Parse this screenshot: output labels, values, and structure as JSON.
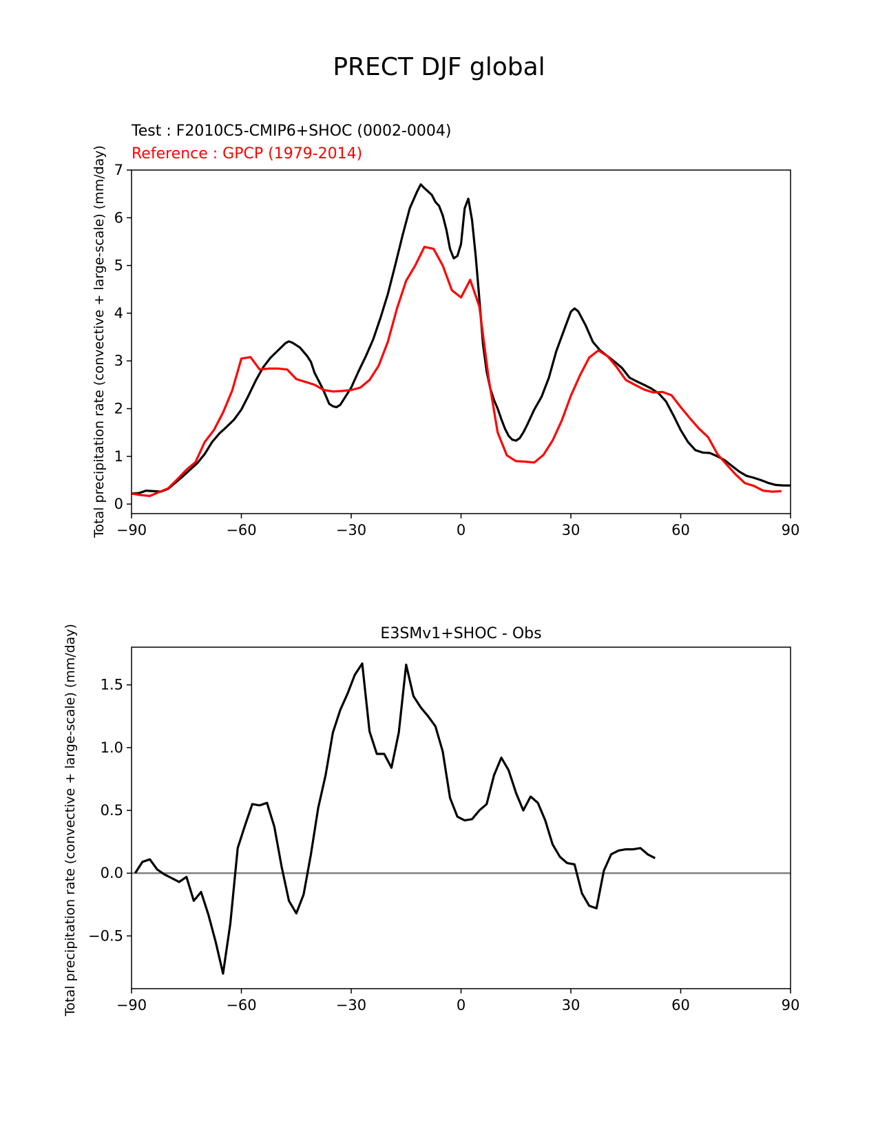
{
  "figure": {
    "title": "PRECT DJF global"
  },
  "chart_data": [
    {
      "type": "line",
      "test_label": "Test : F2010C5-CMIP6+SHOC (0002-0004)",
      "reference_label": "Reference : GPCP (1979-2014)",
      "title": "",
      "xlabel": "",
      "ylabel": "Total precipitation rate (convective + large-scale) (mm/day)",
      "xlim": [
        -90,
        90
      ],
      "ylim": [
        -0.2,
        7.0
      ],
      "xticks": [
        -90,
        -60,
        -30,
        0,
        30,
        60,
        90
      ],
      "xtick_labels": [
        "−90",
        "−60",
        "−30",
        "0",
        "30",
        "60",
        "90"
      ],
      "yticks": [
        0,
        1,
        2,
        3,
        4,
        5,
        6,
        7
      ],
      "ytick_labels": [
        "0",
        "1",
        "2",
        "3",
        "4",
        "5",
        "6",
        "7"
      ],
      "series": [
        {
          "color": "#000000",
          "points": [
            [
              -90,
              0.22
            ],
            [
              -88,
              0.23
            ],
            [
              -86,
              0.28
            ],
            [
              -84,
              0.27
            ],
            [
              -82,
              0.26
            ],
            [
              -80,
              0.32
            ],
            [
              -78,
              0.45
            ],
            [
              -76,
              0.58
            ],
            [
              -74,
              0.72
            ],
            [
              -72,
              0.86
            ],
            [
              -70,
              1.05
            ],
            [
              -68,
              1.3
            ],
            [
              -66,
              1.48
            ],
            [
              -64,
              1.62
            ],
            [
              -62,
              1.77
            ],
            [
              -60,
              1.98
            ],
            [
              -58,
              2.28
            ],
            [
              -56,
              2.6
            ],
            [
              -54,
              2.87
            ],
            [
              -52,
              3.07
            ],
            [
              -50,
              3.22
            ],
            [
              -48,
              3.37
            ],
            [
              -47,
              3.41
            ],
            [
              -46,
              3.38
            ],
            [
              -44,
              3.28
            ],
            [
              -42,
              3.1
            ],
            [
              -41,
              2.98
            ],
            [
              -40,
              2.75
            ],
            [
              -38,
              2.45
            ],
            [
              -37,
              2.28
            ],
            [
              -36,
              2.1
            ],
            [
              -35,
              2.05
            ],
            [
              -34,
              2.03
            ],
            [
              -33,
              2.08
            ],
            [
              -32,
              2.2
            ],
            [
              -30,
              2.44
            ],
            [
              -28,
              2.78
            ],
            [
              -26,
              3.1
            ],
            [
              -24,
              3.45
            ],
            [
              -22,
              3.9
            ],
            [
              -20,
              4.4
            ],
            [
              -18,
              5.0
            ],
            [
              -16,
              5.62
            ],
            [
              -14,
              6.2
            ],
            [
              -12,
              6.55
            ],
            [
              -11,
              6.7
            ],
            [
              -10,
              6.62
            ],
            [
              -9,
              6.55
            ],
            [
              -8,
              6.48
            ],
            [
              -7,
              6.33
            ],
            [
              -6,
              6.25
            ],
            [
              -5,
              6.05
            ],
            [
              -4,
              5.75
            ],
            [
              -3,
              5.35
            ],
            [
              -2,
              5.15
            ],
            [
              -1,
              5.2
            ],
            [
              0,
              5.45
            ],
            [
              1,
              6.2
            ],
            [
              2,
              6.4
            ],
            [
              3,
              5.95
            ],
            [
              4,
              5.2
            ],
            [
              5,
              4.3
            ],
            [
              6,
              3.35
            ],
            [
              7,
              2.78
            ],
            [
              8,
              2.42
            ],
            [
              9,
              2.18
            ],
            [
              10,
              2.0
            ],
            [
              11,
              1.78
            ],
            [
              12,
              1.58
            ],
            [
              13,
              1.43
            ],
            [
              14,
              1.35
            ],
            [
              15,
              1.33
            ],
            [
              16,
              1.38
            ],
            [
              17,
              1.5
            ],
            [
              18,
              1.65
            ],
            [
              20,
              1.98
            ],
            [
              22,
              2.25
            ],
            [
              24,
              2.65
            ],
            [
              26,
              3.2
            ],
            [
              28,
              3.62
            ],
            [
              30,
              4.03
            ],
            [
              31,
              4.1
            ],
            [
              32,
              4.04
            ],
            [
              34,
              3.75
            ],
            [
              36,
              3.4
            ],
            [
              38,
              3.22
            ],
            [
              40,
              3.1
            ],
            [
              42,
              2.98
            ],
            [
              44,
              2.85
            ],
            [
              46,
              2.65
            ],
            [
              48,
              2.57
            ],
            [
              50,
              2.5
            ],
            [
              52,
              2.42
            ],
            [
              54,
              2.32
            ],
            [
              56,
              2.15
            ],
            [
              58,
              1.86
            ],
            [
              60,
              1.55
            ],
            [
              62,
              1.3
            ],
            [
              64,
              1.13
            ],
            [
              66,
              1.08
            ],
            [
              68,
              1.07
            ],
            [
              70,
              1.0
            ],
            [
              72,
              0.92
            ],
            [
              74,
              0.8
            ],
            [
              76,
              0.68
            ],
            [
              78,
              0.59
            ],
            [
              80,
              0.55
            ],
            [
              82,
              0.5
            ],
            [
              84,
              0.44
            ],
            [
              86,
              0.4
            ],
            [
              88,
              0.39
            ],
            [
              90,
              0.39
            ]
          ]
        },
        {
          "color": "#ff0000",
          "points": [
            [
              -90,
              0.22
            ],
            [
              -87.5,
              0.19
            ],
            [
              -85,
              0.17
            ],
            [
              -82.5,
              0.25
            ],
            [
              -80,
              0.33
            ],
            [
              -77.5,
              0.52
            ],
            [
              -75,
              0.72
            ],
            [
              -72.5,
              0.88
            ],
            [
              -70,
              1.3
            ],
            [
              -67.5,
              1.55
            ],
            [
              -65,
              1.92
            ],
            [
              -62.5,
              2.38
            ],
            [
              -60,
              3.05
            ],
            [
              -57.5,
              3.08
            ],
            [
              -55,
              2.82
            ],
            [
              -52.5,
              2.84
            ],
            [
              -50,
              2.84
            ],
            [
              -47.5,
              2.82
            ],
            [
              -45,
              2.62
            ],
            [
              -42.5,
              2.56
            ],
            [
              -40,
              2.5
            ],
            [
              -37.5,
              2.39
            ],
            [
              -35,
              2.36
            ],
            [
              -32.5,
              2.37
            ],
            [
              -30,
              2.39
            ],
            [
              -27.5,
              2.44
            ],
            [
              -25,
              2.6
            ],
            [
              -22.5,
              2.9
            ],
            [
              -20,
              3.4
            ],
            [
              -17.5,
              4.1
            ],
            [
              -15,
              4.68
            ],
            [
              -12.5,
              5.0
            ],
            [
              -10,
              5.39
            ],
            [
              -7.5,
              5.35
            ],
            [
              -5,
              5.0
            ],
            [
              -2.5,
              4.48
            ],
            [
              0,
              4.33
            ],
            [
              2.5,
              4.7
            ],
            [
              5,
              4.14
            ],
            [
              7.5,
              2.65
            ],
            [
              10,
              1.5
            ],
            [
              12.5,
              1.02
            ],
            [
              15,
              0.9
            ],
            [
              17.5,
              0.89
            ],
            [
              20,
              0.87
            ],
            [
              22.5,
              1.03
            ],
            [
              25,
              1.33
            ],
            [
              27.5,
              1.75
            ],
            [
              30,
              2.27
            ],
            [
              32.5,
              2.7
            ],
            [
              35,
              3.07
            ],
            [
              37.5,
              3.22
            ],
            [
              40,
              3.1
            ],
            [
              42.5,
              2.87
            ],
            [
              45,
              2.6
            ],
            [
              47.5,
              2.5
            ],
            [
              50,
              2.4
            ],
            [
              52.5,
              2.34
            ],
            [
              55,
              2.35
            ],
            [
              57.5,
              2.28
            ],
            [
              60,
              2.03
            ],
            [
              62.5,
              1.8
            ],
            [
              65,
              1.58
            ],
            [
              67.5,
              1.4
            ],
            [
              70,
              1.05
            ],
            [
              72.5,
              0.83
            ],
            [
              75,
              0.62
            ],
            [
              77.5,
              0.44
            ],
            [
              80,
              0.38
            ],
            [
              82.5,
              0.28
            ],
            [
              85,
              0.26
            ],
            [
              87.5,
              0.27
            ]
          ]
        }
      ]
    },
    {
      "type": "line",
      "title": "E3SMv1+SHOC - Obs",
      "xlabel": "",
      "ylabel": "Total precipitation rate (convective + large-scale) (mm/day)",
      "xlim": [
        -90,
        90
      ],
      "ylim": [
        -0.92,
        1.8
      ],
      "xticks": [
        -90,
        -60,
        -30,
        0,
        30,
        60,
        90
      ],
      "xtick_labels": [
        "−90",
        "−60",
        "−30",
        "0",
        "30",
        "60",
        "90"
      ],
      "yticks": [
        -0.5,
        0.0,
        0.5,
        1.0,
        1.5
      ],
      "ytick_labels": [
        "−0.5",
        "0.0",
        "0.5",
        "1.0",
        "1.5"
      ],
      "zero_line_color": "#808080",
      "series": [
        {
          "color": "#000000",
          "points": [
            [
              -89,
              0.0
            ],
            [
              -87,
              0.09
            ],
            [
              -85,
              0.11
            ],
            [
              -83,
              0.03
            ],
            [
              -81,
              -0.01
            ],
            [
              -79,
              -0.04
            ],
            [
              -77,
              -0.07
            ],
            [
              -75,
              -0.03
            ],
            [
              -73,
              -0.22
            ],
            [
              -71,
              -0.15
            ],
            [
              -69,
              -0.33
            ],
            [
              -67,
              -0.55
            ],
            [
              -65,
              -0.8
            ],
            [
              -63,
              -0.4
            ],
            [
              -61,
              0.2
            ],
            [
              -59,
              0.38
            ],
            [
              -57,
              0.55
            ],
            [
              -55,
              0.54
            ],
            [
              -53,
              0.56
            ],
            [
              -51,
              0.37
            ],
            [
              -49,
              0.05
            ],
            [
              -47,
              -0.22
            ],
            [
              -45,
              -0.32
            ],
            [
              -43,
              -0.17
            ],
            [
              -41,
              0.15
            ],
            [
              -39,
              0.52
            ],
            [
              -37,
              0.78
            ],
            [
              -35,
              1.12
            ],
            [
              -33,
              1.3
            ],
            [
              -31,
              1.43
            ],
            [
              -29,
              1.58
            ],
            [
              -27,
              1.67
            ],
            [
              -25,
              1.13
            ],
            [
              -23,
              0.95
            ],
            [
              -21,
              0.95
            ],
            [
              -19,
              0.84
            ],
            [
              -17,
              1.12
            ],
            [
              -15,
              1.66
            ],
            [
              -13,
              1.41
            ],
            [
              -11,
              1.32
            ],
            [
              -9,
              1.25
            ],
            [
              -7,
              1.17
            ],
            [
              -5,
              0.97
            ],
            [
              -3,
              0.6
            ],
            [
              -1,
              0.45
            ],
            [
              1,
              0.42
            ],
            [
              3,
              0.43
            ],
            [
              5,
              0.5
            ],
            [
              7,
              0.55
            ],
            [
              9,
              0.78
            ],
            [
              11,
              0.92
            ],
            [
              13,
              0.82
            ],
            [
              15,
              0.64
            ],
            [
              17,
              0.5
            ],
            [
              19,
              0.61
            ],
            [
              21,
              0.56
            ],
            [
              23,
              0.42
            ],
            [
              25,
              0.23
            ],
            [
              27,
              0.13
            ],
            [
              29,
              0.08
            ],
            [
              31,
              0.07
            ],
            [
              33,
              -0.16
            ],
            [
              35,
              -0.26
            ],
            [
              37,
              -0.28
            ],
            [
              39,
              0.02
            ],
            [
              41,
              0.15
            ],
            [
              43,
              0.18
            ],
            [
              45,
              0.19
            ],
            [
              47,
              0.19
            ],
            [
              49,
              0.2
            ],
            [
              51,
              0.15
            ],
            [
              53,
              0.12
            ]
          ]
        }
      ]
    }
  ]
}
